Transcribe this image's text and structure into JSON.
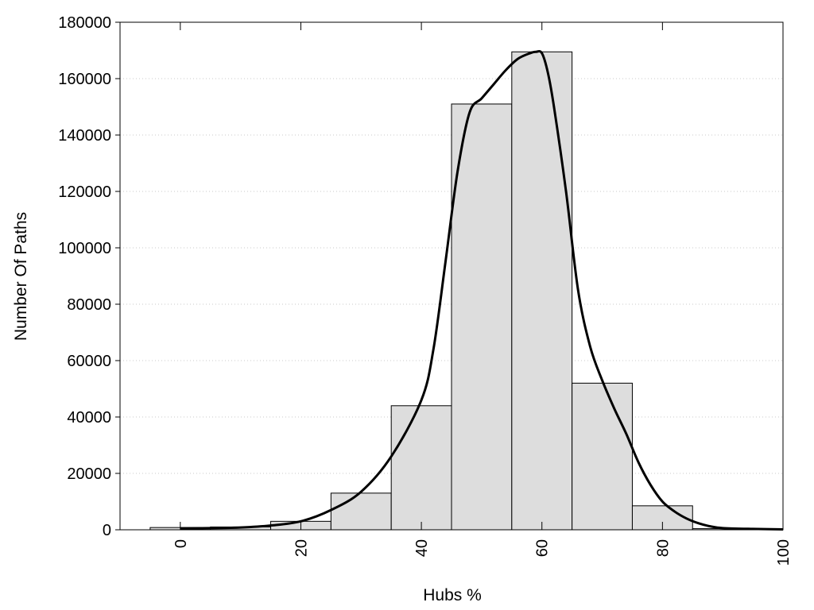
{
  "chart_data": {
    "type": "bar",
    "xlabel": "Hubs %",
    "ylabel": "Number Of Paths",
    "xlim": [
      -10,
      100
    ],
    "ylim": [
      0,
      180000
    ],
    "x_ticks": [
      "0",
      "20",
      "40",
      "60",
      "80",
      "100"
    ],
    "y_ticks": [
      "0",
      "20000",
      "40000",
      "60000",
      "80000",
      "100000",
      "120000",
      "140000",
      "160000",
      "180000"
    ],
    "grid": "horizontal dotted",
    "bin_width": 10,
    "bins": [
      {
        "center": 0,
        "value": 800
      },
      {
        "center": 10,
        "value": 1000
      },
      {
        "center": 20,
        "value": 3000
      },
      {
        "center": 30,
        "value": 13000
      },
      {
        "center": 40,
        "value": 44000
      },
      {
        "center": 50,
        "value": 151000
      },
      {
        "center": 60,
        "value": 169500
      },
      {
        "center": 70,
        "value": 52000
      },
      {
        "center": 80,
        "value": 8500
      },
      {
        "center": 90,
        "value": 400
      }
    ],
    "curve": {
      "x": [
        0,
        5,
        10,
        15,
        20,
        25,
        30,
        35,
        40,
        42,
        44,
        46,
        48,
        50,
        52,
        54,
        56,
        58,
        59,
        60,
        61,
        62,
        64,
        66,
        68,
        70,
        72,
        74,
        76,
        78,
        80,
        82,
        84,
        86,
        88,
        90,
        95,
        100
      ],
      "y": [
        500,
        600,
        800,
        1500,
        3000,
        7000,
        13500,
        26000,
        46000,
        64000,
        95000,
        127000,
        148000,
        153000,
        158000,
        163000,
        167000,
        169000,
        169500,
        169000,
        162000,
        150000,
        120000,
        85000,
        65000,
        53000,
        43000,
        34000,
        24000,
        16000,
        10000,
        6500,
        4000,
        2300,
        1200,
        600,
        300,
        150
      ]
    },
    "colors": {
      "bar_fill": "#dddddd",
      "bar_stroke": "#000000",
      "curve": "#000000",
      "grid": "#c8c8c8"
    }
  }
}
